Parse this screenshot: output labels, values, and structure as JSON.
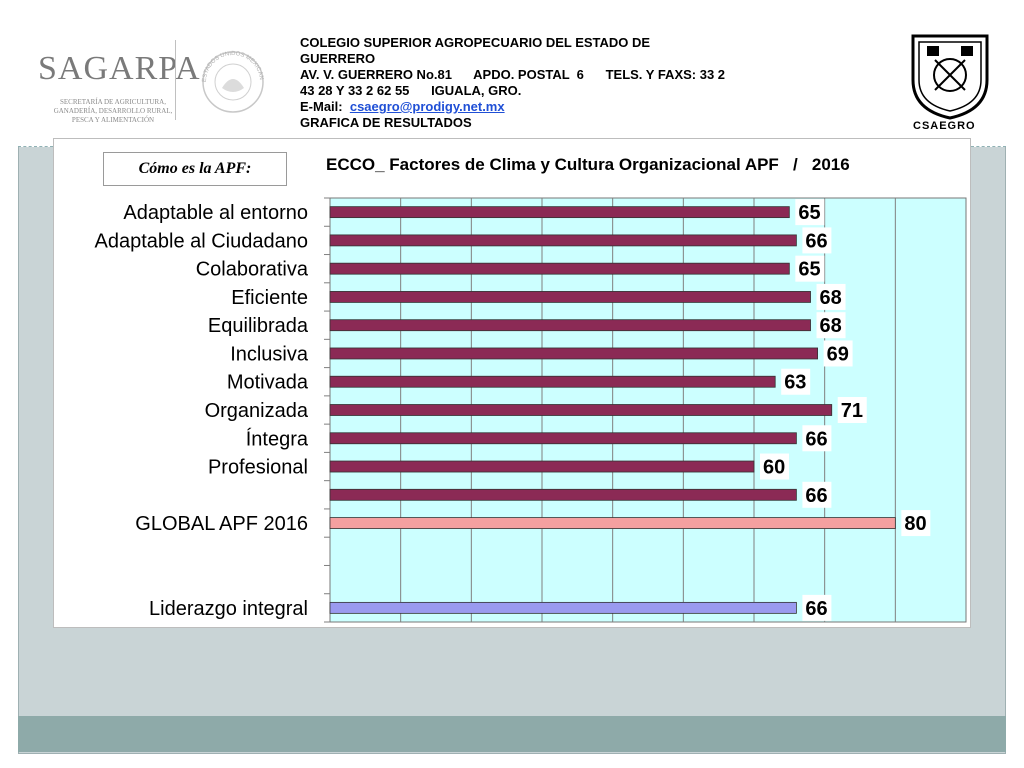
{
  "header": {
    "institution_line1": "COLEGIO SUPERIOR AGROPECUARIO DEL ESTADO DE",
    "institution_line2": "GUERRERO",
    "address_line": "AV. V. GUERRERO No.81      APDO. POSTAL  6      TELS. Y FAXS: 33 2",
    "phone_line": "43 28 Y 33 2 62 55      IGUALA, GRO.",
    "email_label": "E-Mail:  ",
    "email": "csaegro@prodigy.net.mx",
    "subtitle": "GRAFICA DE RESULTADOS"
  },
  "logos": {
    "left_brand": "SAGARPA",
    "left_subtitle": "SECRETARÍA DE AGRICULTURA, GANADERÍA, DESARROLLO RURAL, PESCA Y ALIMENTACIÓN",
    "seal_text": "ESTADOS UNIDOS MEXICANOS",
    "right_label": "CSAEGRO"
  },
  "section_label": "Cómo es la APF:",
  "chart_data": {
    "type": "bar",
    "orientation": "horizontal",
    "title": "ECCO_ Factores de Clima y Cultura Organizacional APF   /   2016",
    "xlim": [
      0,
      90
    ],
    "grid": true,
    "categories": [
      "Adaptable al entorno",
      "Adaptable al Ciudadano",
      "Colaborativa",
      "Eficiente",
      "Equilibrada",
      "Inclusiva",
      "Motivada",
      "Organizada",
      "Íntegra",
      "Profesional",
      "",
      "GLOBAL APF   2016",
      "",
      "",
      "Liderazgo integral"
    ],
    "values": [
      65,
      66,
      65,
      68,
      68,
      69,
      63,
      71,
      66,
      60,
      66,
      80,
      null,
      null,
      66
    ],
    "value_labels": [
      "65",
      "66",
      "65",
      "68",
      "68",
      "69",
      "63",
      "71",
      "66",
      "60",
      "66",
      "80",
      "",
      "",
      "66"
    ],
    "bar_colors": [
      "#8b2a55",
      "#8b2a55",
      "#8b2a55",
      "#8b2a55",
      "#8b2a55",
      "#8b2a55",
      "#8b2a55",
      "#8b2a55",
      "#8b2a55",
      "#8b2a55",
      "#8b2a55",
      "#f4a0a0",
      "",
      "",
      "#9a9aef"
    ],
    "plot_background": "#ccffff"
  }
}
